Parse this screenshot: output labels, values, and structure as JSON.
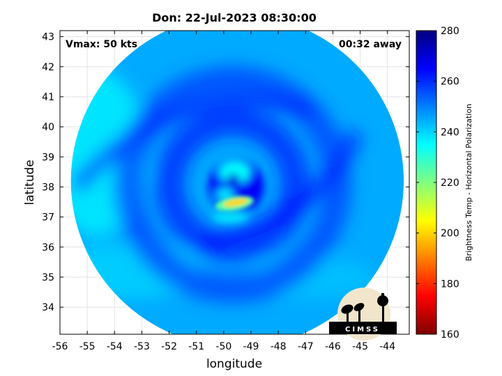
{
  "chart_data": {
    "type": "heatmap",
    "title": "Don: 22-Jul-2023 08:30:00",
    "xlabel": "longitude",
    "ylabel": "latitude",
    "xlim": [
      -56,
      -43.2
    ],
    "ylim": [
      33.1,
      43.2
    ],
    "xticks": [
      -56,
      -55,
      -54,
      -53,
      -52,
      -51,
      -50,
      -49,
      -48,
      -47,
      -46,
      -45,
      -44
    ],
    "yticks": [
      34,
      35,
      36,
      37,
      38,
      39,
      40,
      41,
      42,
      43
    ],
    "grid": true,
    "annotations": {
      "left": "Vmax: 50 kts",
      "right": "00:32 away"
    },
    "colorbar": {
      "label": "Brightness Temp - Horizontal Polarization",
      "min": 160,
      "max": 280,
      "ticks": [
        160,
        180,
        200,
        220,
        240,
        260,
        280
      ],
      "colormap": "jet"
    },
    "swath": {
      "center_lon": -49.5,
      "center_lat": 38.2,
      "radius_deg": 5.8
    },
    "storm_center": {
      "lon": -49.8,
      "lat": 38.2
    },
    "eyewall_min_temp": {
      "lon": -49.6,
      "lat": 37.45,
      "value": 200
    },
    "background_temp": 245,
    "logo": "CIMSS"
  }
}
